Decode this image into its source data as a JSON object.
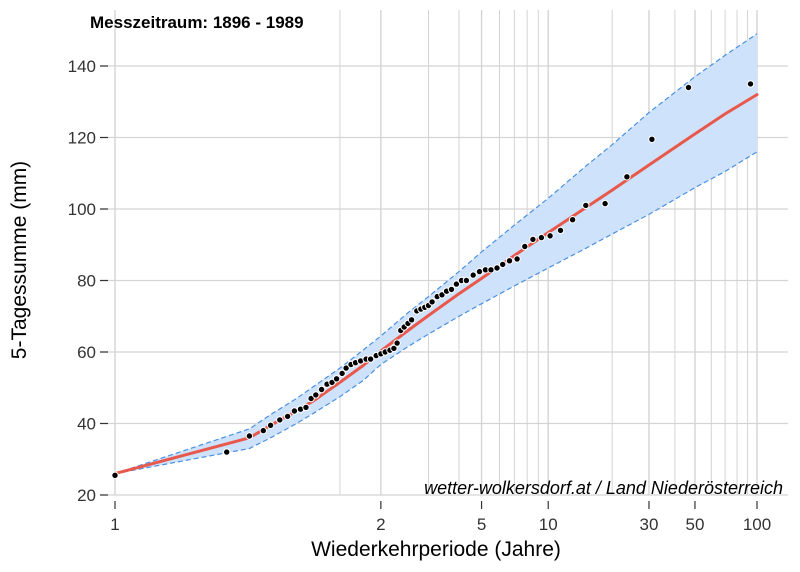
{
  "chart_data": {
    "type": "scatter",
    "title": "Messzeitraum: 1896 - 1989",
    "xlabel": "Wiederkehrperiode (Jahre)",
    "ylabel": "5-Tagessumme (mm)",
    "caption": "wetter-wolkersdorf.at / Land Niederösterreich",
    "x_scale": "reciprocal-log",
    "xlim": [
      0.97,
      115
    ],
    "ylim": [
      20,
      150
    ],
    "x_ticks": [
      1,
      2,
      5,
      10,
      30,
      50,
      100
    ],
    "x_tick_labels": [
      "1",
      "2",
      "5",
      "10",
      "30",
      "50",
      "100"
    ],
    "y_ticks": [
      20,
      40,
      60,
      80,
      100,
      120,
      140
    ],
    "y_tick_labels": [
      "20",
      "40",
      "60",
      "80",
      "100",
      "120",
      "140"
    ],
    "x_minor_gridlines": [
      1.5,
      3,
      4,
      6,
      7,
      8,
      9,
      20,
      40,
      60,
      70,
      80,
      90
    ],
    "grid": true,
    "colors": {
      "points": "#000000",
      "point_edge": "#ffffff",
      "fit": "#e8594c",
      "band_fill": "#cfe2fc",
      "band_edge": "#4a90e2",
      "grid": "#d4d4d4"
    },
    "series": [
      {
        "type": "scatter",
        "x": [
          1.0,
          1.02,
          1.05,
          1.08,
          1.1,
          1.13,
          1.16,
          1.19,
          1.22,
          1.25,
          1.28,
          1.31,
          1.35,
          1.39,
          1.43,
          1.47,
          1.52,
          1.56,
          1.61,
          1.66,
          1.72,
          1.79,
          1.85,
          1.93,
          2.0,
          2.07,
          2.15,
          2.22,
          2.28,
          2.35,
          2.42,
          2.5,
          2.58,
          2.7,
          2.8,
          2.9,
          3.0,
          3.1,
          3.25,
          3.4,
          3.55,
          3.72,
          3.9,
          4.1,
          4.3,
          4.6,
          4.9,
          5.2,
          5.5,
          5.85,
          6.2,
          6.65,
          7.2,
          7.8,
          8.5,
          9.3,
          10.2,
          11.4,
          13.0,
          15.0,
          18.5,
          23.5,
          31.0,
          46.5,
          93.0
        ],
        "y": [
          25.5,
          32,
          36.5,
          38,
          39.5,
          41,
          42,
          43.5,
          44,
          44.5,
          47,
          48,
          49.5,
          51,
          51.5,
          52.5,
          54,
          55.5,
          56.5,
          57,
          57.5,
          58,
          58,
          59,
          59.5,
          60,
          60.5,
          61,
          62.5,
          66,
          67,
          68,
          69,
          71.5,
          72,
          72.5,
          73,
          74,
          75.5,
          76,
          77,
          77.5,
          79,
          80,
          80,
          81.5,
          82.5,
          83,
          83,
          83.5,
          84.5,
          85.5,
          86,
          89.5,
          91.5,
          92,
          92.5,
          94,
          97,
          101,
          101.5,
          109,
          119.5,
          134,
          135
        ]
      },
      {
        "type": "line",
        "name": "fit",
        "x": [
          1.0,
          1.05,
          1.1,
          1.2,
          1.3,
          1.5,
          1.75,
          2,
          2.5,
          3,
          4,
          5,
          7,
          10,
          15,
          20,
          30,
          50,
          70,
          100
        ],
        "y": [
          26,
          36,
          39.5,
          43.5,
          46.5,
          51.5,
          56.2,
          60.3,
          66,
          70.2,
          76.3,
          80.6,
          87,
          93.4,
          100.4,
          105.3,
          112.3,
          121,
          126.6,
          132
        ]
      },
      {
        "type": "band",
        "name": "confidence",
        "x": [
          1.0,
          1.05,
          1.1,
          1.2,
          1.3,
          1.5,
          1.75,
          2,
          2.5,
          3,
          4,
          5,
          7,
          10,
          15,
          20,
          30,
          50,
          70,
          100
        ],
        "lower": [
          26,
          33,
          36,
          40,
          43,
          47.5,
          52,
          56.5,
          61.5,
          65,
          70,
          73.5,
          78.5,
          83.5,
          89,
          93,
          98.5,
          106,
          110.5,
          116
        ],
        "upper": [
          26,
          38.5,
          42.5,
          47,
          50.5,
          55.5,
          60.5,
          64.5,
          71,
          75.5,
          82.5,
          88,
          95.5,
          103,
          112,
          118,
          127,
          137,
          143,
          149
        ]
      }
    ]
  }
}
